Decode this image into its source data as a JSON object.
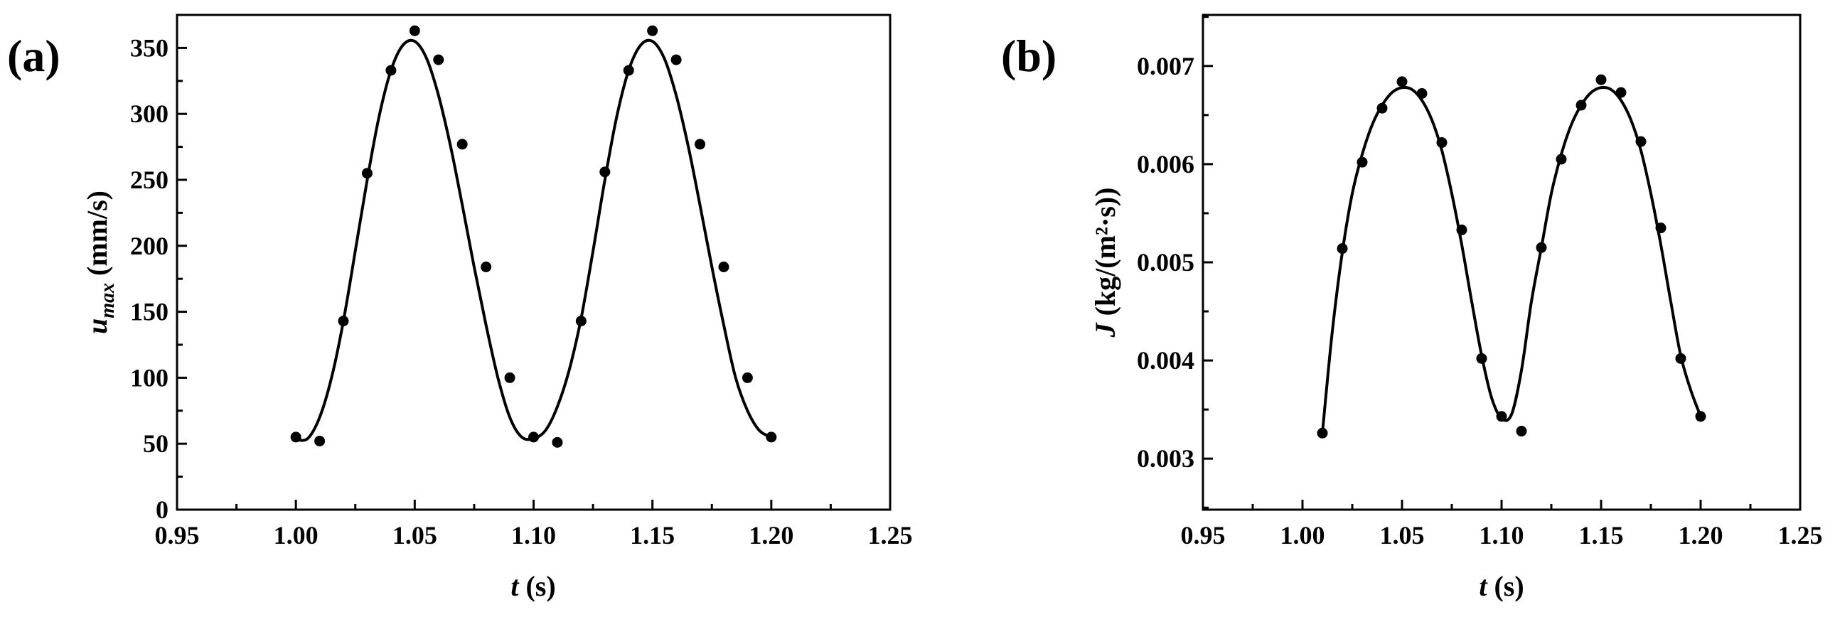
{
  "chart_data": [
    {
      "type": "scatter",
      "panel_label": "(a)",
      "xlabel_var": "t",
      "xlabel_unit": " (s)",
      "ylabel_var": "u",
      "ylabel_sub": "max",
      "ylabel_unit": " (mm/s)",
      "xlim": [
        0.95,
        1.25
      ],
      "ylim": [
        0,
        375
      ],
      "xticks": [
        "0.95",
        "1.00",
        "1.05",
        "1.10",
        "1.15",
        "1.20",
        "1.25"
      ],
      "xtick_values": [
        0.95,
        1.0,
        1.05,
        1.1,
        1.15,
        1.2,
        1.25
      ],
      "yticks": [
        "0",
        "50",
        "100",
        "150",
        "200",
        "250",
        "300",
        "350"
      ],
      "ytick_values": [
        0,
        50,
        100,
        150,
        200,
        250,
        300,
        350
      ],
      "grid": false,
      "series": [
        {
          "x": [
            1.0,
            1.01,
            1.02,
            1.03,
            1.04,
            1.05,
            1.06,
            1.07,
            1.08,
            1.09,
            1.1,
            1.11,
            1.12,
            1.13,
            1.14,
            1.15,
            1.16,
            1.17,
            1.18,
            1.19,
            1.2
          ],
          "y": [
            55,
            52,
            143,
            255,
            333,
            363,
            341,
            277,
            184,
            100,
            55,
            51,
            143,
            256,
            333,
            363,
            341,
            277,
            184,
            100,
            55
          ]
        }
      ],
      "fit_curve": {
        "x": [
          1.0,
          1.005,
          1.01,
          1.015,
          1.02,
          1.025,
          1.03,
          1.035,
          1.04,
          1.045,
          1.05,
          1.055,
          1.06,
          1.065,
          1.07,
          1.075,
          1.08,
          1.085,
          1.09,
          1.095,
          1.1,
          1.105,
          1.11,
          1.115,
          1.12,
          1.125,
          1.13,
          1.135,
          1.14,
          1.145,
          1.15,
          1.155,
          1.16,
          1.165,
          1.17,
          1.175,
          1.18,
          1.185,
          1.19,
          1.195,
          1.2
        ],
        "y": [
          53,
          54,
          70,
          100,
          143,
          196,
          250,
          298,
          333,
          352,
          355,
          342,
          314,
          276,
          231,
          184,
          140,
          100,
          70,
          55,
          54,
          60,
          78,
          106,
          145,
          196,
          250,
          298,
          333,
          352,
          355,
          342,
          314,
          276,
          231,
          184,
          140,
          100,
          75,
          60,
          55
        ]
      }
    },
    {
      "type": "scatter",
      "panel_label": "(b)",
      "xlabel_var": "t",
      "xlabel_unit": " (s)",
      "ylabel_var": "J",
      "ylabel_sub": "",
      "ylabel_unit": " (kg/(m²·s))",
      "xlim": [
        0.95,
        1.25
      ],
      "ylim": [
        0.00248,
        0.00752
      ],
      "xticks": [
        "0.95",
        "1.00",
        "1.05",
        "1.10",
        "1.15",
        "1.20",
        "1.25"
      ],
      "xtick_values": [
        0.95,
        1.0,
        1.05,
        1.1,
        1.15,
        1.2,
        1.25
      ],
      "yticks": [
        "0.003",
        "0.004",
        "0.005",
        "0.006",
        "0.007"
      ],
      "ytick_values": [
        0.003,
        0.004,
        0.005,
        0.006,
        0.007
      ],
      "grid": false,
      "series": [
        {
          "x": [
            1.01,
            1.02,
            1.03,
            1.04,
            1.05,
            1.06,
            1.07,
            1.08,
            1.09,
            1.1,
            1.11,
            1.12,
            1.13,
            1.14,
            1.15,
            1.16,
            1.17,
            1.18,
            1.19,
            1.2
          ],
          "y": [
            0.00326,
            0.00514,
            0.00602,
            0.00657,
            0.00684,
            0.00672,
            0.00622,
            0.00533,
            0.00402,
            0.00343,
            0.00328,
            0.00515,
            0.00605,
            0.0066,
            0.00686,
            0.00673,
            0.00623,
            0.00535,
            0.00402,
            0.00343
          ]
        }
      ],
      "fit_curve": {
        "x": [
          1.01,
          1.015,
          1.02,
          1.025,
          1.03,
          1.035,
          1.04,
          1.045,
          1.05,
          1.055,
          1.06,
          1.065,
          1.07,
          1.075,
          1.08,
          1.085,
          1.09,
          1.095,
          1.1,
          1.105,
          1.11,
          1.115,
          1.12,
          1.125,
          1.13,
          1.135,
          1.14,
          1.145,
          1.15,
          1.155,
          1.16,
          1.165,
          1.17,
          1.175,
          1.18,
          1.185,
          1.19,
          1.195,
          1.2
        ],
        "y": [
          0.00326,
          0.0043,
          0.0051,
          0.0057,
          0.0061,
          0.0064,
          0.0066,
          0.00673,
          0.00678,
          0.00676,
          0.00665,
          0.00645,
          0.00614,
          0.0057,
          0.00518,
          0.0046,
          0.00405,
          0.00362,
          0.00341,
          0.00345,
          0.0039,
          0.0046,
          0.00515,
          0.0057,
          0.0061,
          0.0064,
          0.0066,
          0.00673,
          0.00678,
          0.00676,
          0.00665,
          0.00645,
          0.00614,
          0.0057,
          0.00518,
          0.0046,
          0.00405,
          0.0037,
          0.00343
        ]
      }
    }
  ]
}
